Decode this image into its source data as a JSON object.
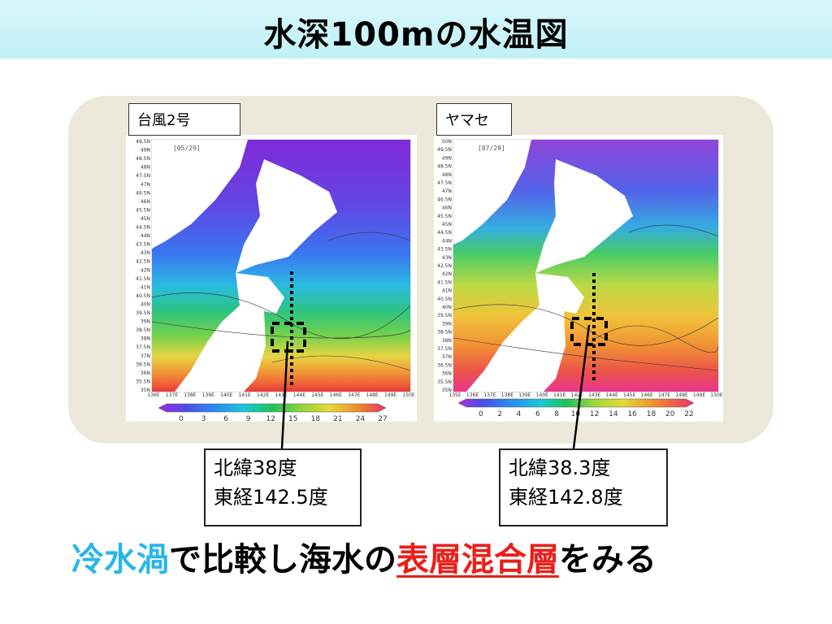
{
  "title": "水深100mの水温図",
  "maps": [
    {
      "label": "台風2号",
      "date": "[05/29]",
      "lat_labels": [
        "49.5N",
        "49N",
        "48.5N",
        "48N",
        "47.5N",
        "47N",
        "46.5N",
        "46N",
        "45.5N",
        "45N",
        "44.5N",
        "44N",
        "43.5N",
        "43N",
        "42.5N",
        "42N",
        "41.5N",
        "41N",
        "40.5N",
        "40N",
        "39.5N",
        "39N",
        "38.5N",
        "38N",
        "37.5N",
        "37N",
        "36.5N",
        "36N",
        "35.5N",
        "35N"
      ],
      "lon_labels": [
        "136E",
        "137E",
        "138E",
        "139E",
        "140E",
        "141E",
        "142E",
        "143E",
        "144E",
        "145E",
        "146E",
        "147E",
        "148E",
        "149E",
        "150E"
      ],
      "colorbar_ticks": [
        "0",
        "3",
        "6",
        "9",
        "12",
        "15",
        "18",
        "21",
        "24",
        "27"
      ],
      "coord_line1": "北緯38度",
      "coord_line2": "東経142.5度"
    },
    {
      "label": "ヤマセ",
      "date": "[07/29]",
      "lat_labels": [
        "50N",
        "49.5N",
        "49N",
        "48.5N",
        "48N",
        "47.5N",
        "47N",
        "46.5N",
        "46N",
        "45.5N",
        "45N",
        "44.5N",
        "44N",
        "43.5N",
        "43N",
        "42.5N",
        "42N",
        "41.5N",
        "41N",
        "40.5N",
        "40N",
        "39.5N",
        "39N",
        "38.5N",
        "38N",
        "37.5N",
        "37N",
        "36.5N",
        "36N",
        "35.5N",
        "35N"
      ],
      "lon_labels": [
        "135E",
        "136E",
        "137E",
        "138E",
        "139E",
        "140E",
        "141E",
        "142E",
        "143E",
        "144E",
        "145E",
        "146E",
        "147E",
        "148E",
        "149E",
        "150E"
      ],
      "colorbar_ticks": [
        "0",
        "2",
        "4",
        "6",
        "8",
        "10",
        "12",
        "14",
        "16",
        "18",
        "20",
        "22"
      ],
      "coord_line1": "北緯38.3度",
      "coord_line2": "東経142.8度"
    }
  ],
  "bottom_text": {
    "part1": "冷水渦",
    "part2": "で比較し海水の",
    "part3": "表層混合層",
    "part4": "をみる"
  },
  "colors": {
    "cold_text": "#29b6e8",
    "highlight_text": "#e8201a",
    "title_bar": "#c8f3f8",
    "panel_bg": "#ece8dc"
  }
}
